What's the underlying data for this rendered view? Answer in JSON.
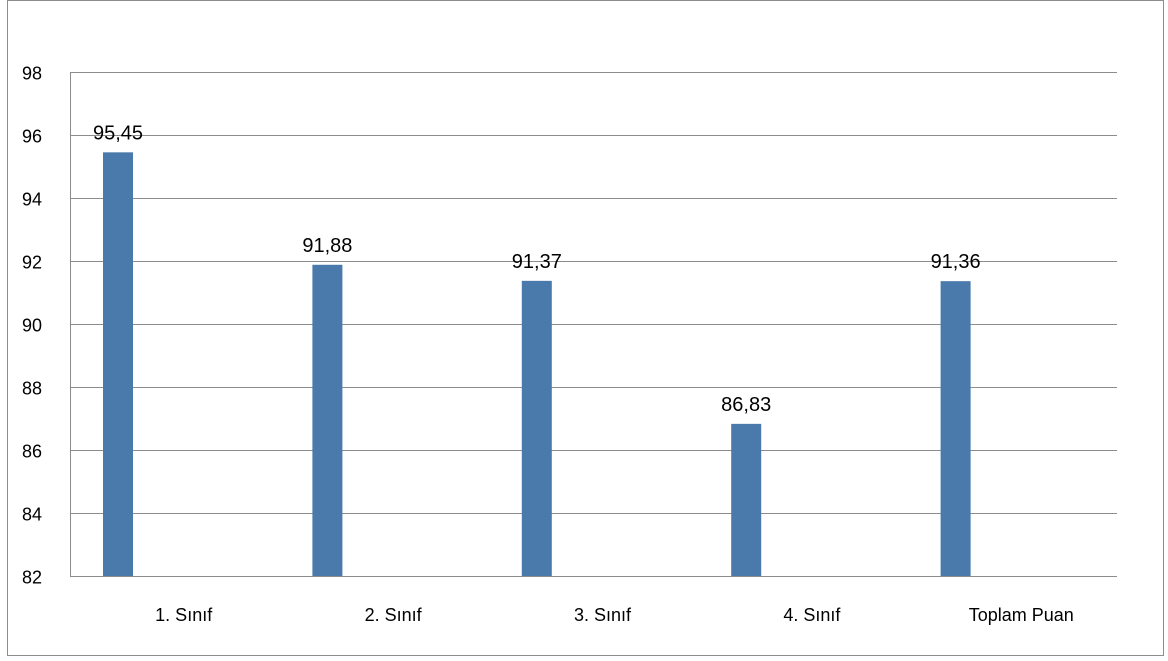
{
  "chart_data": {
    "type": "bar",
    "title": "",
    "xlabel": "",
    "ylabel": "",
    "categories": [
      "1. Sınıf",
      "2. Sınıf",
      "3. Sınıf",
      "4. Sınıf",
      "Toplam Puan"
    ],
    "values": [
      95.45,
      91.88,
      91.37,
      86.83,
      91.36
    ],
    "value_labels": [
      "95,45",
      "91,88",
      "91,37",
      "86,83",
      "91,36"
    ],
    "ylim": [
      82,
      98
    ],
    "yticks": [
      82,
      84,
      86,
      88,
      90,
      92,
      94,
      96,
      98
    ],
    "grid": true,
    "legend": "none",
    "colors": {
      "bar": "#4a7aab",
      "grid": "#8c8c8c",
      "axis": "#8c8c8c",
      "text": "#000000"
    }
  }
}
